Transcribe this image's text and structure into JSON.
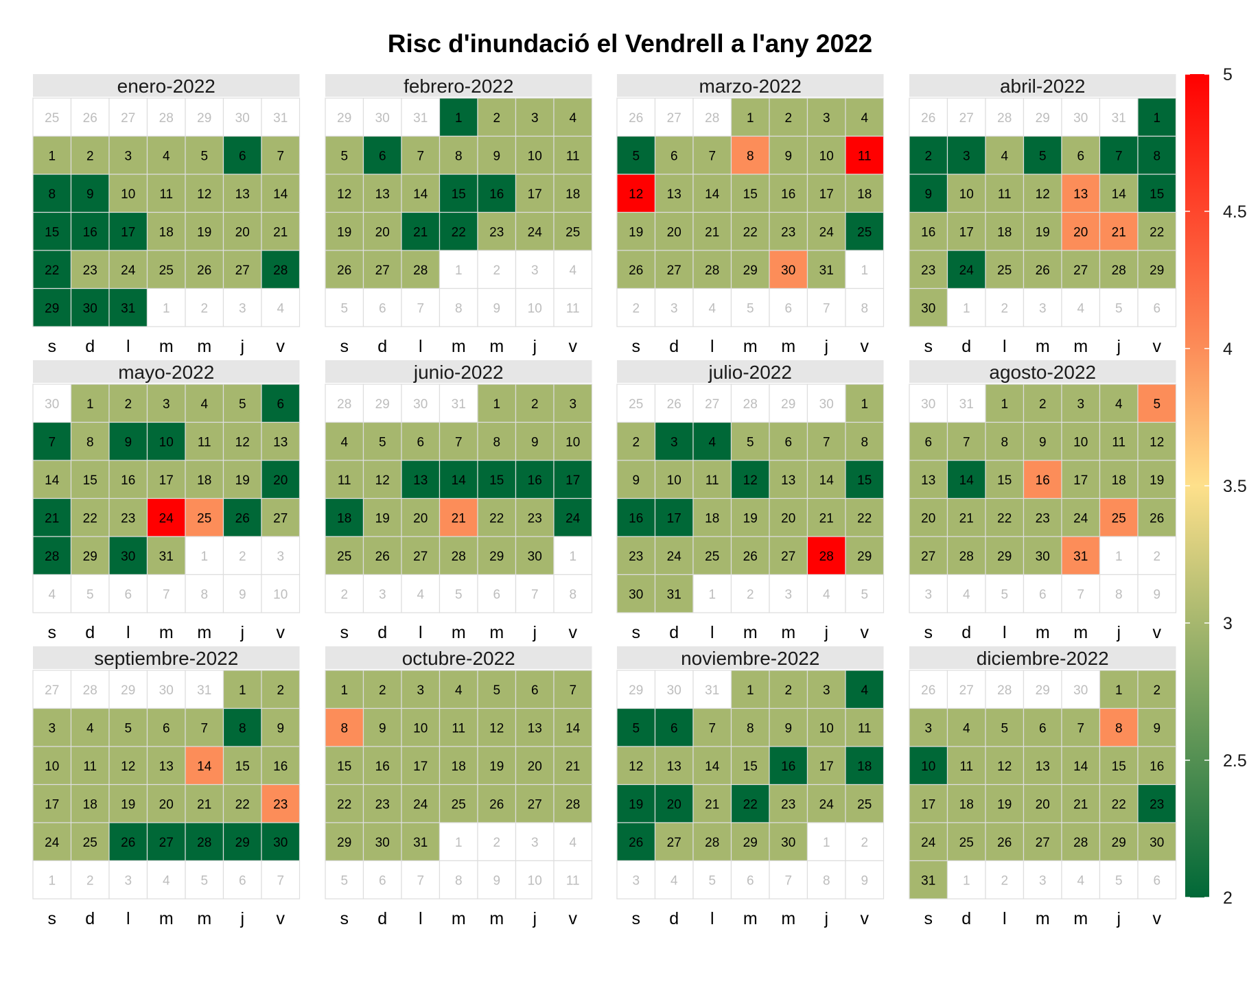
{
  "chart_data": {
    "type": "heatmap",
    "title": "Risc d'inundació el Vendrell a l'any 2022",
    "year": 2022,
    "weekday_labels": [
      "s",
      "d",
      "l",
      "m",
      "m",
      "j",
      "v"
    ],
    "colorbar": {
      "min": 2,
      "max": 5,
      "ticks": [
        "2",
        "2.5",
        "3",
        "3.5",
        "4",
        "4.5",
        "5"
      ],
      "colors": [
        "#006837",
        "#A6B76E",
        "#FEE08B",
        "#FC8D59",
        "#FF0000"
      ],
      "color_stops": [
        2,
        3,
        3.5,
        4,
        5
      ],
      "placement": "right"
    },
    "grid_fill": "#ffffff",
    "grid_line": "#dddddd",
    "strip_fill": "#e6e6e6",
    "months": [
      {
        "label": "enero-2022",
        "days": 31,
        "lead": 7,
        "risk": [
          3,
          3,
          3,
          3,
          3,
          2,
          3,
          2,
          2,
          3,
          3,
          3,
          3,
          3,
          2,
          2,
          2,
          3,
          3,
          3,
          3,
          2,
          3,
          3,
          3,
          3,
          3,
          2,
          2,
          2,
          2
        ]
      },
      {
        "label": "febrero-2022",
        "days": 28,
        "lead": 3,
        "risk": [
          2,
          3,
          3,
          3,
          3,
          2,
          3,
          3,
          3,
          3,
          3,
          3,
          3,
          3,
          2,
          2,
          3,
          3,
          3,
          3,
          2,
          2,
          3,
          3,
          3,
          3,
          3,
          3
        ]
      },
      {
        "label": "marzo-2022",
        "days": 31,
        "lead": 3,
        "risk": [
          3,
          3,
          3,
          3,
          2,
          3,
          3,
          4,
          3,
          3,
          5,
          5,
          3,
          3,
          3,
          3,
          3,
          3,
          3,
          3,
          3,
          3,
          3,
          3,
          2,
          3,
          3,
          3,
          3,
          4,
          3
        ]
      },
      {
        "label": "abril-2022",
        "days": 30,
        "lead": 6,
        "risk": [
          2,
          2,
          2,
          3,
          2,
          3,
          2,
          2,
          2,
          3,
          3,
          3,
          4,
          3,
          2,
          3,
          3,
          3,
          3,
          4,
          4,
          3,
          3,
          2,
          3,
          3,
          3,
          3,
          3,
          3
        ]
      },
      {
        "label": "mayo-2022",
        "days": 31,
        "lead": 1,
        "risk": [
          3,
          3,
          3,
          3,
          3,
          2,
          2,
          3,
          2,
          2,
          3,
          3,
          3,
          3,
          3,
          3,
          3,
          3,
          3,
          2,
          2,
          3,
          3,
          5,
          4,
          2,
          3,
          2,
          3,
          2,
          3
        ]
      },
      {
        "label": "junio-2022",
        "days": 30,
        "lead": 4,
        "risk": [
          3,
          3,
          3,
          3,
          3,
          3,
          3,
          3,
          3,
          3,
          3,
          3,
          2,
          2,
          2,
          2,
          2,
          2,
          3,
          3,
          4,
          3,
          3,
          2,
          3,
          3,
          3,
          3,
          3,
          3
        ]
      },
      {
        "label": "julio-2022",
        "days": 31,
        "lead": 6,
        "risk": [
          3,
          3,
          2,
          2,
          3,
          3,
          3,
          3,
          3,
          3,
          3,
          2,
          3,
          3,
          2,
          2,
          2,
          3,
          3,
          3,
          3,
          3,
          3,
          3,
          3,
          3,
          3,
          5,
          3,
          3,
          3
        ]
      },
      {
        "label": "agosto-2022",
        "days": 31,
        "lead": 2,
        "risk": [
          3,
          3,
          3,
          3,
          4,
          3,
          3,
          3,
          3,
          3,
          3,
          3,
          3,
          2,
          3,
          4,
          3,
          3,
          3,
          3,
          3,
          3,
          3,
          3,
          4,
          3,
          3,
          3,
          3,
          3,
          4
        ]
      },
      {
        "label": "septiembre-2022",
        "days": 30,
        "lead": 5,
        "risk": [
          3,
          3,
          3,
          3,
          3,
          3,
          3,
          2,
          3,
          3,
          3,
          3,
          3,
          4,
          3,
          3,
          3,
          3,
          3,
          3,
          3,
          3,
          4,
          3,
          3,
          2,
          2,
          2,
          2,
          2
        ]
      },
      {
        "label": "octubre-2022",
        "days": 31,
        "lead": 0,
        "risk": [
          3,
          3,
          3,
          3,
          3,
          3,
          3,
          4,
          3,
          3,
          3,
          3,
          3,
          3,
          3,
          3,
          3,
          3,
          3,
          3,
          3,
          3,
          3,
          3,
          3,
          3,
          3,
          3,
          3,
          3,
          3
        ]
      },
      {
        "label": "noviembre-2022",
        "days": 30,
        "lead": 3,
        "risk": [
          3,
          3,
          3,
          2,
          2,
          2,
          3,
          3,
          3,
          3,
          3,
          3,
          3,
          3,
          3,
          2,
          3,
          2,
          2,
          2,
          3,
          2,
          3,
          3,
          3,
          2,
          3,
          3,
          3,
          3
        ]
      },
      {
        "label": "diciembre-2022",
        "days": 31,
        "lead": 5,
        "risk": [
          3,
          3,
          3,
          3,
          3,
          3,
          3,
          4,
          3,
          2,
          3,
          3,
          3,
          3,
          3,
          3,
          3,
          3,
          3,
          3,
          3,
          3,
          2,
          3,
          3,
          3,
          3,
          3,
          3,
          3,
          3
        ]
      }
    ]
  }
}
